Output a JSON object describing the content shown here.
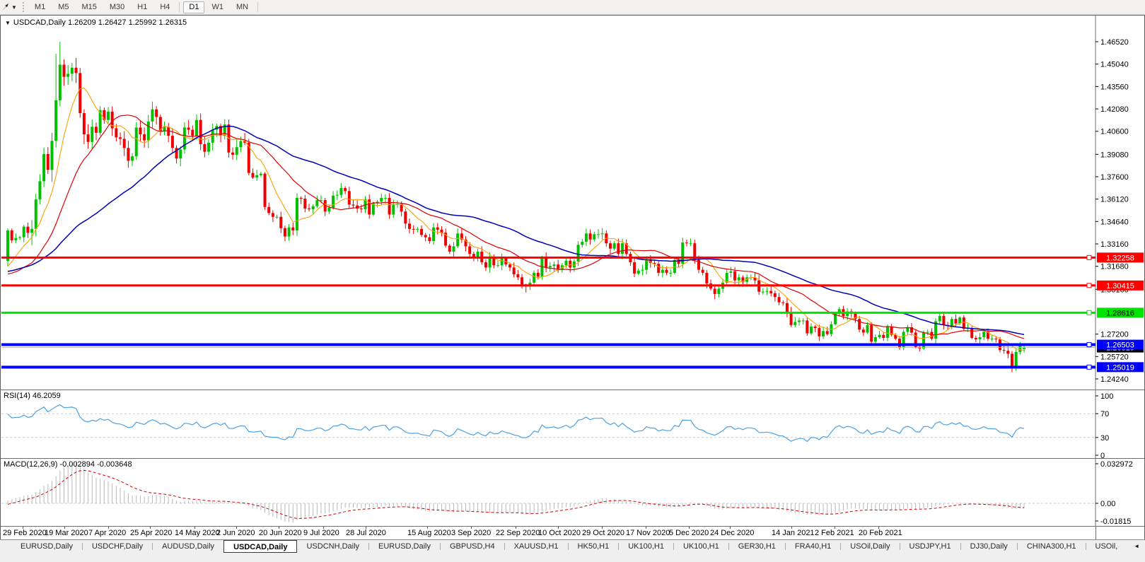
{
  "toolbar": {
    "timeframes": [
      "M1",
      "M5",
      "M15",
      "M30",
      "H1",
      "H4",
      "D1",
      "W1",
      "MN"
    ],
    "active_timeframe": "D1"
  },
  "chart": {
    "collapse_icon": "▼",
    "symbol_label": "USDCAD,Daily",
    "ohlc_label": "1.26209 1.26427 1.25992 1.26315",
    "price_axis_ticks": [
      "1.46520",
      "1.45040",
      "1.43560",
      "1.42080",
      "1.40600",
      "1.39080",
      "1.37600",
      "1.36120",
      "1.34640",
      "1.33160",
      "1.31680",
      "1.30160",
      "1.27200",
      "1.25720",
      "1.24240"
    ],
    "levels": [
      {
        "label": "1.32258",
        "price": 1.32258,
        "color": "#FF0000",
        "text_color": "#FFFFFF",
        "width": 3
      },
      {
        "label": "1.30415",
        "price": 1.30415,
        "color": "#FF0000",
        "text_color": "#FFFFFF",
        "width": 3
      },
      {
        "label": "1.28616",
        "price": 1.28616,
        "color": "#00E200",
        "text_color": "#000000",
        "width": 3
      },
      {
        "label": "1.26503",
        "price": 1.26503,
        "color": "#0000FF",
        "text_color": "#FFFFFF",
        "width": 4
      },
      {
        "label": "1.25019",
        "price": 1.25019,
        "color": "#0000FF",
        "text_color": "#FFFFFF",
        "width": 4
      }
    ],
    "bid": {
      "label": "1.26315",
      "price": 1.26315,
      "line_color": "#B8B8B8",
      "box_color": "#000000",
      "text_color": "#FFFFFF"
    }
  },
  "rsi": {
    "label": "RSI(14) 46.2059",
    "period": 14,
    "last_value": 46.2059,
    "ticks": [
      "100",
      "70",
      "30",
      "0"
    ],
    "tick_values": [
      100,
      70,
      30,
      0
    ],
    "level_lines": [
      70,
      30
    ],
    "line_color": "#4DA0E2"
  },
  "macd": {
    "label": "MACD(12,26,9) -0.002894 -0.003648",
    "params": [
      12,
      26,
      9
    ],
    "last_main": -0.002894,
    "last_signal": -0.003648,
    "ticks": [
      "0.032972",
      "0.00",
      "-0.01815"
    ],
    "tick_values": [
      0.032972,
      0,
      -0.01815
    ],
    "histogram_color": "#B9B9B9",
    "signal_color": "#D40000"
  },
  "date_axis": [
    "29 Feb 2020",
    "19 Mar 2020",
    "7 Apr 2020",
    "25 Apr 2020",
    "14 May 2020",
    "2 Jun 2020",
    "20 Jun 2020",
    "9 Jul 2020",
    "28 Jul 2020",
    "15 Aug 2020",
    "3 Sep 2020",
    "22 Sep 2020",
    "10 Oct 2020",
    "29 Oct 2020",
    "17 Nov 2020",
    "5 Dec 2020",
    "24 Dec 2020",
    "14 Jan 2021",
    "2 Feb 2021",
    "20 Feb 2021"
  ],
  "tabs": {
    "items": [
      "EURUSD,Daily",
      "USDCHF,Daily",
      "AUDUSD,Daily",
      "USDCAD,Daily",
      "USDCNH,Daily",
      "EURUSD,Daily",
      "GBPUSD,H4",
      "XAUUSD,H1",
      "HK50,H1",
      "UK100,H1",
      "UK100,H1",
      "GER30,H1",
      "FRA40,H1",
      "USOil,Daily",
      "USDJPY,H1",
      "DJ30,Daily",
      "CHINA300,H1",
      "USOil,"
    ],
    "active_index": 3,
    "scroll_left_icon": "◄",
    "scroll_right_icon": "►"
  },
  "chart_data": {
    "type": "candlestick",
    "symbol": "USDCAD",
    "timeframe": "Daily",
    "price_axis": {
      "top": 1.4652,
      "bottom": 1.2424
    },
    "last_candle": {
      "open": 1.26209,
      "high": 1.26427,
      "low": 1.25992,
      "close": 1.26315
    },
    "key_extremes": {
      "march_spike_high": {
        "index": 13,
        "price": 1.4652
      },
      "september_low": {
        "index": 129,
        "price": 1.2994
      },
      "february_low": {
        "index": 250,
        "price": 1.2468
      }
    },
    "colors": {
      "bull": "#00C000",
      "bear": "#EE0000",
      "ma_fast": "#FF9F00",
      "ma_mid": "#DE0000",
      "ma_slow": "#0000B4"
    },
    "ma_periods": {
      "fast": 8,
      "mid": 20,
      "slow": 45
    },
    "prehistory": {
      "days": 60,
      "mean_close": 1.315
    },
    "closes": [
      1.3405,
      1.334,
      1.3355,
      1.336,
      1.343,
      1.339,
      1.3415,
      1.361,
      1.373,
      1.391,
      1.3805,
      1.3997,
      1.4265,
      1.45,
      1.442,
      1.444,
      1.448,
      1.4445,
      1.418,
      1.404,
      1.399,
      1.409,
      1.405,
      1.42,
      1.4135,
      1.419,
      1.408,
      1.402,
      1.401,
      1.395,
      1.3865,
      1.3895,
      1.4085,
      1.404,
      1.4,
      1.4125,
      1.4205,
      1.4155,
      1.406,
      1.409,
      1.403,
      1.395,
      1.388,
      1.394,
      1.4085,
      1.407,
      1.403,
      1.4135,
      1.3975,
      1.3925,
      1.3985,
      1.407,
      1.4095,
      1.403,
      1.4105,
      1.392,
      1.3905,
      1.3955,
      1.3995,
      1.3985,
      1.3785,
      1.3755,
      1.377,
      1.378,
      1.356,
      1.352,
      1.3495,
      1.3495,
      1.342,
      1.3365,
      1.3425,
      1.3405,
      1.362,
      1.3615,
      1.355,
      1.3545,
      1.3565,
      1.3605,
      1.3605,
      1.353,
      1.3555,
      1.3635,
      1.364,
      1.3685,
      1.3665,
      1.3576,
      1.357,
      1.355,
      1.3545,
      1.361,
      1.351,
      1.3585,
      1.3595,
      1.362,
      1.362,
      1.351,
      1.3575,
      1.358,
      1.353,
      1.345,
      1.3415,
      1.341,
      1.3415,
      1.3375,
      1.336,
      1.3335,
      1.3425,
      1.341,
      1.339,
      1.3305,
      1.3265,
      1.33,
      1.3385,
      1.3345,
      1.33,
      1.325,
      1.322,
      1.3265,
      1.3195,
      1.316,
      1.3225,
      1.3175,
      1.3175,
      1.322,
      1.318,
      1.316,
      1.3115,
      1.3095,
      1.304,
      1.3035,
      1.306,
      1.3125,
      1.31,
      1.3225,
      1.316,
      1.317,
      1.318,
      1.315,
      1.3175,
      1.3205,
      1.316,
      1.32,
      1.331,
      1.333,
      1.3385,
      1.3345,
      1.338,
      1.338,
      1.3385,
      1.332,
      1.3285,
      1.332,
      1.325,
      1.332,
      1.325,
      1.3195,
      1.312,
      1.314,
      1.3145,
      1.3215,
      1.319,
      1.3185,
      1.3125,
      1.3145,
      1.3125,
      1.3125,
      1.321,
      1.3185,
      1.3325,
      1.332,
      1.332,
      1.321,
      1.3145,
      1.3125,
      1.3055,
      1.302,
      1.2985,
      1.302,
      1.306,
      1.3125,
      1.3135,
      1.3075,
      1.3095,
      1.3065,
      1.3095,
      1.3095,
      1.3075,
      1.3,
      1.3,
      1.3005,
      1.299,
      1.2965,
      1.293,
      1.2925,
      1.2865,
      1.278,
      1.28,
      1.281,
      1.281,
      1.2725,
      1.277,
      1.276,
      1.2705,
      1.274,
      1.272,
      1.2785,
      1.2855,
      1.2885,
      1.284,
      1.287,
      1.2855,
      1.282,
      1.275,
      1.273,
      1.278,
      1.267,
      1.27,
      1.2715,
      1.2695,
      1.277,
      1.2715,
      1.269,
      1.2635,
      1.2735,
      1.2765,
      1.273,
      1.2635,
      1.2625,
      1.273,
      1.2735,
      1.269,
      1.2805,
      1.284,
      1.278,
      1.2775,
      1.282,
      1.279,
      1.283,
      1.2755,
      1.276,
      1.2695,
      1.2685,
      1.27,
      1.2735,
      1.269,
      1.269,
      1.2685,
      1.2615,
      1.261,
      1.259,
      1.2505,
      1.2602,
      1.265,
      1.26315
    ]
  }
}
